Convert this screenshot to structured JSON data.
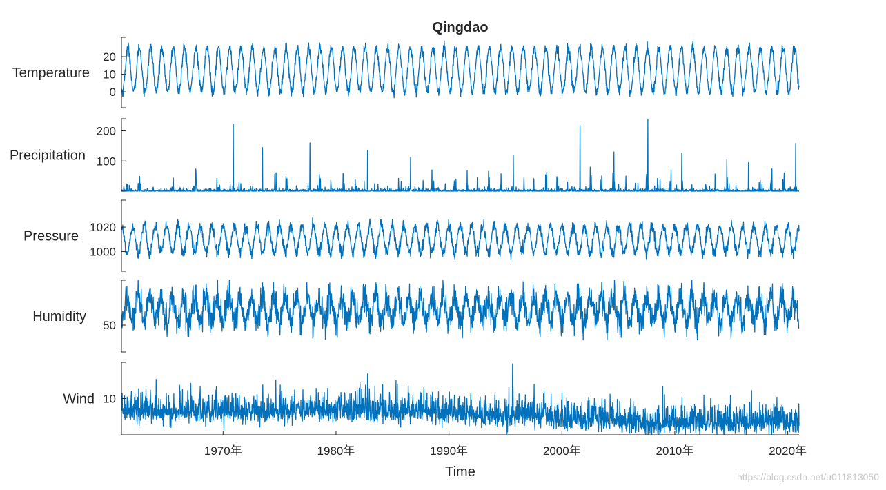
{
  "chart_data": {
    "type": "line",
    "title": "Qingdao",
    "xlabel": "Time",
    "x_range": [
      "1961-01",
      "2021-01"
    ],
    "x_tick_labels": [
      "1970年",
      "1980年",
      "1990年",
      "2000年",
      "2010年",
      "2020年"
    ],
    "x_tick_years": [
      1970,
      1980,
      1990,
      2000,
      2010,
      2020
    ],
    "line_color": "#0072bd",
    "panels": [
      {
        "name": "Temperature",
        "ylabel": "Temperature",
        "ylim": [
          -9,
          31
        ],
        "yticks": [
          0,
          10,
          20
        ],
        "ytick_labels": [
          "0",
          "10",
          "20"
        ],
        "series": {
          "pattern": "annual cycle",
          "mean": 12.5,
          "amplitude": 12.5,
          "noise": 2.5,
          "observed_min": -9,
          "observed_max": 30,
          "peak_month": 8
        }
      },
      {
        "name": "Precipitation",
        "ylabel": "Precipitation",
        "ylim": [
          0,
          240
        ],
        "yticks": [
          100,
          200
        ],
        "ytick_labels": [
          "100",
          "200"
        ],
        "series": {
          "pattern": "seasonal rain spikes",
          "baseline": 0,
          "typical_peak": 60,
          "observed_max": 238,
          "notable_peaks": [
            {
              "year": 1970.9,
              "value": 222
            },
            {
              "year": 2001.6,
              "value": 218
            },
            {
              "year": 2007.6,
              "value": 238
            },
            {
              "year": 1977.7,
              "value": 160
            },
            {
              "year": 2020.7,
              "value": 158
            },
            {
              "year": 1973.5,
              "value": 145
            },
            {
              "year": 1982.8,
              "value": 135
            },
            {
              "year": 2004.6,
              "value": 130
            },
            {
              "year": 2010.6,
              "value": 126
            },
            {
              "year": 1995.7,
              "value": 120
            },
            {
              "year": 1986.6,
              "value": 112
            },
            {
              "year": 2014.6,
              "value": 105
            }
          ]
        }
      },
      {
        "name": "Pressure",
        "ylabel": "Pressure",
        "ylim": [
          984,
          1042
        ],
        "yticks": [
          1000,
          1020
        ],
        "ytick_labels": [
          "1000",
          "1020"
        ],
        "series": {
          "pattern": "annual cycle (inverse of temperature)",
          "mean": 1010,
          "amplitude": 11,
          "noise": 4,
          "observed_min": 985,
          "observed_max": 1038,
          "peak_month": 1
        }
      },
      {
        "name": "Humidity",
        "ylabel": "Humidity",
        "ylim": [
          20,
          100
        ],
        "yticks": [
          50
        ],
        "ytick_labels": [
          "50"
        ],
        "series": {
          "pattern": "annual cycle with high noise",
          "mean": 67,
          "amplitude": 14,
          "noise": 14,
          "observed_min": 22,
          "observed_max": 96,
          "peak_month": 7
        }
      },
      {
        "name": "Wind",
        "ylabel": "Wind",
        "ylim": [
          0,
          20
        ],
        "yticks": [
          10
        ],
        "ytick_labels": [
          "10"
        ],
        "series": {
          "pattern": "noisy, decreasing after 1990",
          "mean_1960s": 6.5,
          "mean_2010s": 3.5,
          "noise": 2.6,
          "observed_max": 19.8
        }
      }
    ]
  },
  "watermark": "https://blog.csdn.net/u011813050"
}
